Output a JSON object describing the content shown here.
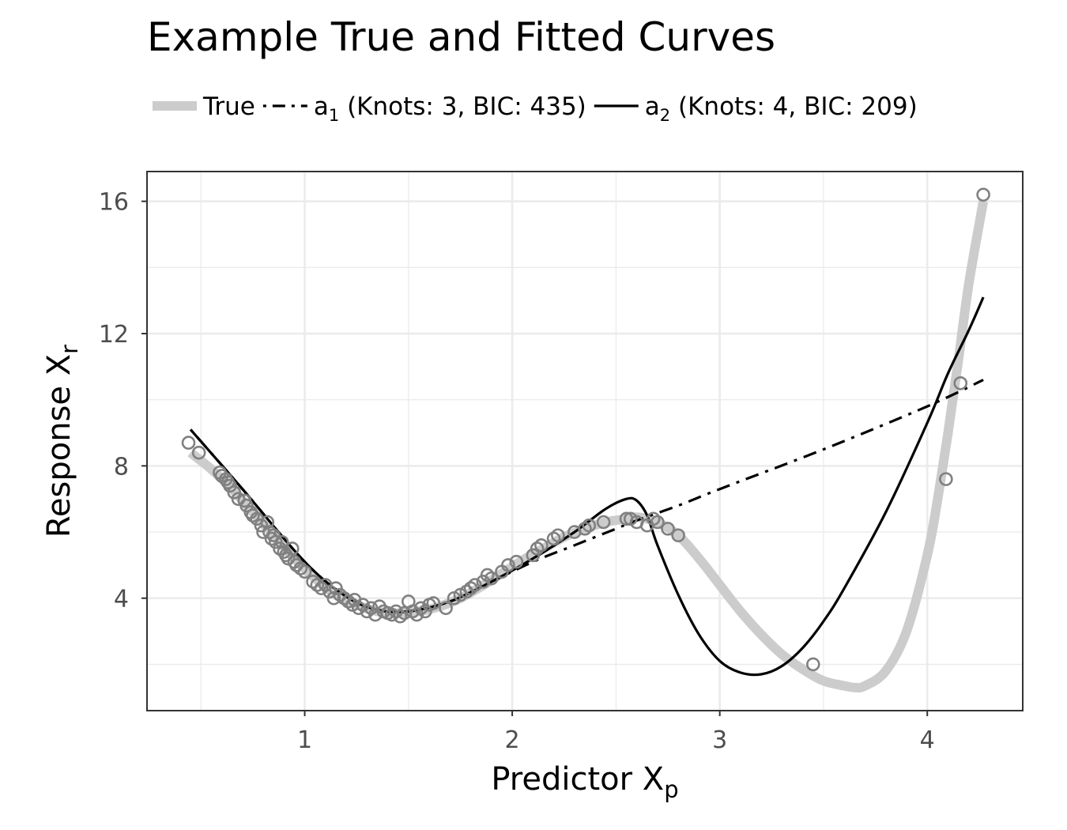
{
  "chart_data": {
    "type": "scatter",
    "title": "Example True and Fitted Curves",
    "xlabel": "Predictor X",
    "xlabel_sub": "p",
    "ylabel": "Response X",
    "ylabel_sub": "r",
    "xlim": [
      0.24,
      4.46
    ],
    "ylim": [
      0.6,
      16.9
    ],
    "xticks": [
      1,
      2,
      3,
      4
    ],
    "yticks": [
      4,
      8,
      12,
      16
    ],
    "xtick_labels": [
      "1",
      "2",
      "3",
      "4"
    ],
    "ytick_labels": [
      "4",
      "8",
      "12",
      "16"
    ],
    "grid": true,
    "legend_position": "top",
    "legend": [
      {
        "key": "true",
        "label": "True",
        "sub": "",
        "rest": "",
        "color": "#cccccc",
        "style": "thick"
      },
      {
        "key": "a1",
        "label": "a",
        "sub": "1",
        "rest": " (Knots: 3, BIC: 435)",
        "color": "#000000",
        "style": "dotdash"
      },
      {
        "key": "a2",
        "label": "a",
        "sub": "2",
        "rest": " (Knots: 4, BIC: 209)",
        "color": "#000000",
        "style": "solid"
      }
    ],
    "series": [
      {
        "name": "True",
        "color": "#cccccc",
        "x": [
          0.45,
          0.55,
          0.65,
          0.75,
          0.85,
          0.95,
          1.05,
          1.15,
          1.25,
          1.35,
          1.45,
          1.55,
          1.65,
          1.75,
          1.85,
          1.95,
          2.05,
          2.15,
          2.25,
          2.35,
          2.45,
          2.55,
          2.6,
          2.65,
          2.7,
          2.8,
          2.9,
          3.0,
          3.1,
          3.2,
          3.3,
          3.4,
          3.5,
          3.6,
          3.65,
          3.7,
          3.8,
          3.9,
          4.0,
          4.05,
          4.1,
          4.15,
          4.2,
          4.27
        ],
        "y": [
          8.4,
          7.9,
          7.3,
          6.6,
          5.9,
          5.2,
          4.6,
          4.1,
          3.8,
          3.6,
          3.55,
          3.6,
          3.75,
          4.0,
          4.35,
          4.75,
          5.15,
          5.5,
          5.85,
          6.1,
          6.3,
          6.4,
          6.45,
          6.4,
          6.3,
          5.9,
          5.2,
          4.4,
          3.6,
          2.9,
          2.3,
          1.85,
          1.5,
          1.35,
          1.3,
          1.35,
          1.8,
          3.0,
          5.3,
          7.0,
          9.0,
          11.2,
          13.5,
          16.0
        ]
      },
      {
        "name": "a1 (Knots: 3, BIC: 435)",
        "color": "#000000",
        "x": [
          0.45,
          0.7,
          1.0,
          1.2,
          1.35,
          1.5,
          1.7,
          1.9,
          2.1,
          2.3,
          2.5,
          2.6,
          2.8,
          3.0,
          3.5,
          4.0,
          4.27
        ],
        "y": [
          9.1,
          7.3,
          5.1,
          4.05,
          3.65,
          3.6,
          3.9,
          4.5,
          5.1,
          5.6,
          6.1,
          6.35,
          6.8,
          7.3,
          8.5,
          9.8,
          10.6
        ]
      },
      {
        "name": "a2 (Knots: 4, BIC: 209)",
        "color": "#000000",
        "x": [
          0.45,
          0.7,
          1.0,
          1.2,
          1.35,
          1.5,
          1.7,
          1.9,
          2.1,
          2.3,
          2.45,
          2.55,
          2.6,
          2.65,
          2.7,
          2.8,
          2.9,
          3.0,
          3.1,
          3.2,
          3.3,
          3.4,
          3.5,
          3.6,
          3.8,
          4.0,
          4.1,
          4.2,
          4.27
        ],
        "y": [
          9.1,
          7.3,
          5.1,
          4.05,
          3.65,
          3.6,
          3.9,
          4.5,
          5.2,
          6.0,
          6.7,
          7.0,
          6.95,
          6.5,
          5.6,
          4.1,
          2.9,
          2.1,
          1.75,
          1.7,
          1.95,
          2.5,
          3.3,
          4.3,
          6.6,
          9.3,
          10.8,
          12.1,
          13.1
        ]
      }
    ],
    "points": {
      "x": [
        0.44,
        0.49,
        0.59,
        0.6,
        0.62,
        0.63,
        0.64,
        0.66,
        0.68,
        0.72,
        0.71,
        0.74,
        0.75,
        0.77,
        0.79,
        0.8,
        0.82,
        0.83,
        0.84,
        0.85,
        0.86,
        0.88,
        0.89,
        0.9,
        0.91,
        0.92,
        0.94,
        0.95,
        0.96,
        0.98,
        1.0,
        1.04,
        1.06,
        1.08,
        1.1,
        1.12,
        1.14,
        1.15,
        1.17,
        1.19,
        1.21,
        1.23,
        1.24,
        1.26,
        1.28,
        1.3,
        1.32,
        1.34,
        1.36,
        1.38,
        1.4,
        1.42,
        1.44,
        1.46,
        1.48,
        1.5,
        1.52,
        1.54,
        1.56,
        1.58,
        1.6,
        1.62,
        1.68,
        1.72,
        1.75,
        1.78,
        1.8,
        1.82,
        1.86,
        1.88,
        1.9,
        1.95,
        1.98,
        2.02,
        2.1,
        2.12,
        2.14,
        2.2,
        2.22,
        2.3,
        2.35,
        2.37,
        2.44,
        2.55,
        2.57,
        2.6,
        2.65,
        2.68,
        2.7,
        2.75,
        2.8,
        3.45,
        4.09,
        4.16,
        4.27
      ],
      "y": [
        8.7,
        8.4,
        7.8,
        7.7,
        7.6,
        7.5,
        7.4,
        7.2,
        7.0,
        6.8,
        6.95,
        6.6,
        6.5,
        6.4,
        6.2,
        6.0,
        6.3,
        6.0,
        5.8,
        5.9,
        5.7,
        5.5,
        5.7,
        5.4,
        5.3,
        5.2,
        5.5,
        5.1,
        5.0,
        4.9,
        4.8,
        4.5,
        4.4,
        4.3,
        4.4,
        4.2,
        4.0,
        4.3,
        4.1,
        4.0,
        3.9,
        3.8,
        3.95,
        3.7,
        3.8,
        3.6,
        3.7,
        3.5,
        3.75,
        3.6,
        3.55,
        3.5,
        3.6,
        3.45,
        3.55,
        3.9,
        3.6,
        3.5,
        3.7,
        3.6,
        3.8,
        3.85,
        3.7,
        4.0,
        4.1,
        4.2,
        4.3,
        4.4,
        4.5,
        4.7,
        4.6,
        4.8,
        5.0,
        5.1,
        5.3,
        5.5,
        5.6,
        5.8,
        5.9,
        6.0,
        6.1,
        6.2,
        6.3,
        6.4,
        6.4,
        6.3,
        6.2,
        6.4,
        6.3,
        6.1,
        5.9,
        2.0,
        7.6,
        10.5,
        16.2
      ]
    }
  }
}
